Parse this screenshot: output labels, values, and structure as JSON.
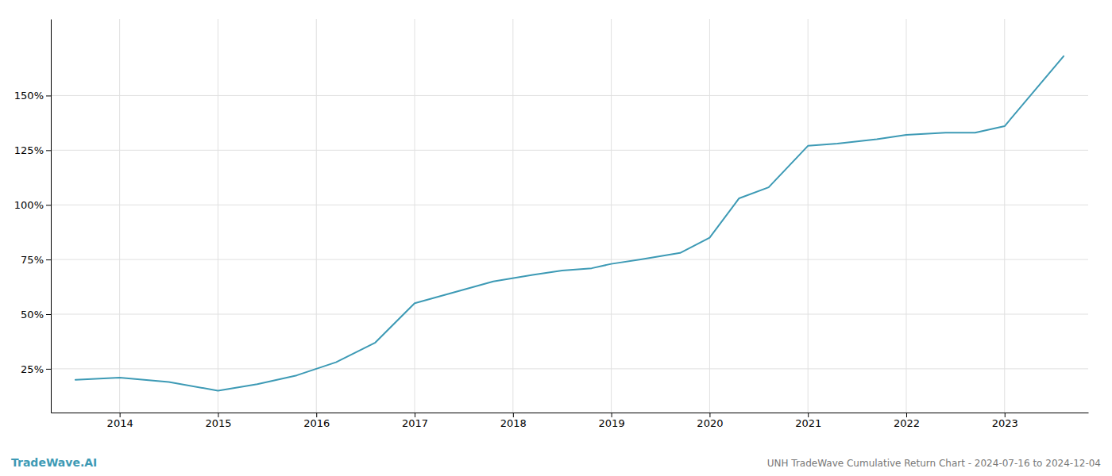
{
  "chart_data": {
    "type": "line",
    "x": [
      2013.55,
      2014.0,
      2014.5,
      2015.0,
      2015.4,
      2015.8,
      2016.2,
      2016.6,
      2017.0,
      2017.4,
      2017.8,
      2018.2,
      2018.5,
      2018.8,
      2019.0,
      2019.3,
      2019.7,
      2020.0,
      2020.3,
      2020.6,
      2021.0,
      2021.3,
      2021.7,
      2022.0,
      2022.4,
      2022.7,
      2023.0,
      2023.6
    ],
    "values": [
      20,
      21,
      19,
      15,
      18,
      22,
      28,
      37,
      55,
      60,
      65,
      68,
      70,
      71,
      73,
      75,
      78,
      85,
      103,
      108,
      127,
      128,
      130,
      132,
      133,
      133,
      136,
      168
    ],
    "color": "#3d9ab5",
    "xlim": [
      2013.3,
      2023.85
    ],
    "ylim": [
      5,
      185
    ],
    "xticks": [
      2014,
      2015,
      2016,
      2017,
      2018,
      2019,
      2020,
      2021,
      2022,
      2023
    ],
    "yticks": [
      {
        "value": 25,
        "label": "25%"
      },
      {
        "value": 50,
        "label": "50%"
      },
      {
        "value": 75,
        "label": "75%"
      },
      {
        "value": 100,
        "label": "100%"
      },
      {
        "value": 125,
        "label": "125%"
      },
      {
        "value": 150,
        "label": "150%"
      }
    ],
    "grid": true,
    "annotations": [
      "TradeWave.AI",
      "UNH TradeWave Cumulative Return Chart - 2024-07-16 to 2024-12-04"
    ]
  }
}
